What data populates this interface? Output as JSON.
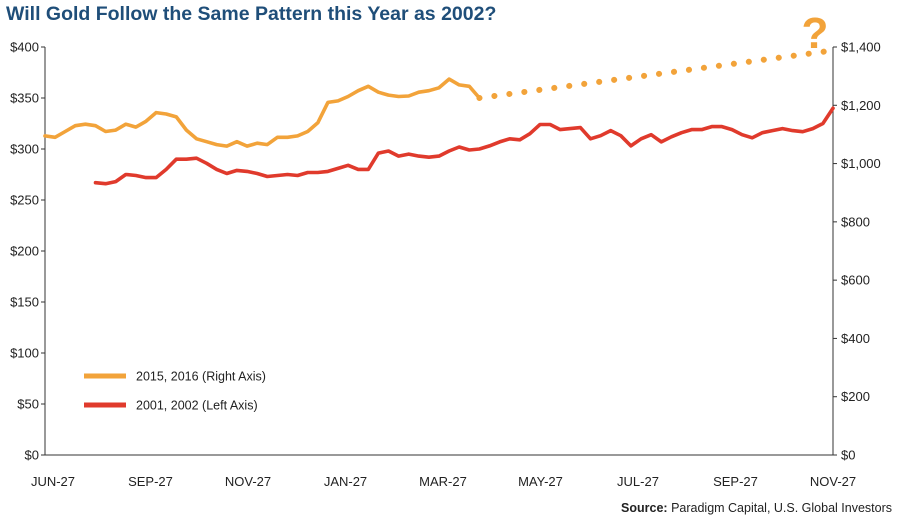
{
  "chart_data": {
    "type": "line",
    "title": "Will Gold Follow the Same Pattern this Year as 2002?",
    "source_label": "Source:",
    "source_text": "Paradigm Capital, U.S. Global Investors",
    "question_mark": "?",
    "x_tick_labels": [
      "JUN-27",
      "SEP-27",
      "NOV-27",
      "JAN-27",
      "MAR-27",
      "MAY-27",
      "JUL-27",
      "SEP-27",
      "NOV-27"
    ],
    "y_left": {
      "min": 0,
      "max": 400,
      "step": 50,
      "tick_labels": [
        "$0",
        "$50",
        "$100",
        "$150",
        "$200",
        "$250",
        "$300",
        "$350",
        "$400"
      ]
    },
    "y_right": {
      "min": 0,
      "max": 1400,
      "step": 200,
      "tick_labels": [
        "$0",
        "$200",
        "$400",
        "$600",
        "$800",
        "$1,000",
        "$1,200",
        "$1,400"
      ]
    },
    "grid": false,
    "legend_position": "bottom-left",
    "colors": {
      "orange": "#f2a33a",
      "red": "#e03a2c",
      "title": "#1f4e79"
    },
    "x_count": 79,
    "series": [
      {
        "name": "2015, 2016 (Right Axis)",
        "axis": "right",
        "values": [
          1095,
          1090,
          1110,
          1130,
          1135,
          1130,
          1110,
          1115,
          1135,
          1125,
          1145,
          1175,
          1170,
          1160,
          1115,
          1085,
          1075,
          1065,
          1060,
          1075,
          1060,
          1070,
          1065,
          1090,
          1090,
          1095,
          1110,
          1140,
          1210,
          1215,
          1230,
          1250,
          1265,
          1245,
          1235,
          1230,
          1232,
          1245,
          1250,
          1260,
          1290,
          1270,
          1265,
          1225
        ]
      },
      {
        "name": "",
        "axis": "right",
        "style": "dotted",
        "values": [
          1225,
          1385
        ]
      },
      {
        "name": "2001, 2002 (Left Axis)",
        "axis": "left",
        "values": [
          267,
          266,
          268,
          275,
          274,
          272,
          272,
          280,
          290,
          290,
          291,
          286,
          280,
          276,
          279,
          278,
          276,
          273,
          274,
          275,
          274,
          277,
          277,
          278,
          281,
          284,
          280,
          280,
          296,
          298,
          293,
          295,
          293,
          292,
          293,
          298,
          302,
          299,
          300,
          303,
          307,
          310,
          309,
          315,
          324,
          324,
          319,
          320,
          321,
          310,
          313,
          318,
          313,
          303,
          310,
          314,
          307,
          312,
          316,
          319,
          319,
          322,
          322,
          319,
          314,
          311,
          316,
          318,
          320,
          318,
          317,
          320,
          325,
          340
        ]
      }
    ]
  }
}
